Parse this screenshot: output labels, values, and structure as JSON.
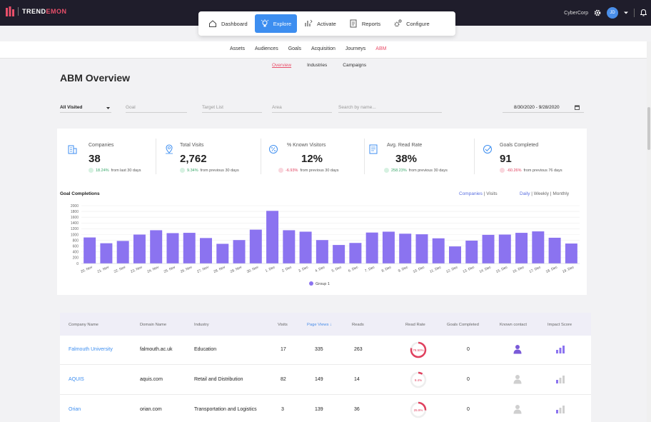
{
  "header": {
    "brand_prefix": "TREND",
    "brand_suffix": "EMON",
    "org": "CyberCorp",
    "avatar_initials": "JD"
  },
  "mainnav": [
    {
      "label": "Dashboard",
      "icon": "home-icon",
      "active": false
    },
    {
      "label": "Explore",
      "icon": "bulb-icon",
      "active": true
    },
    {
      "label": "Activate",
      "icon": "activate-icon",
      "active": false
    },
    {
      "label": "Reports",
      "icon": "reports-icon",
      "active": false
    },
    {
      "label": "Configure",
      "icon": "gear-icon",
      "active": false
    }
  ],
  "subnav": [
    "Assets",
    "Audiences",
    "Goals",
    "Acquisition",
    "Journeys",
    "ABM"
  ],
  "subnav_selected": "ABM",
  "abm_tabs": [
    "Overview",
    "Industries",
    "Campaigns"
  ],
  "abm_tab_selected": "Overview",
  "page": {
    "title": "ABM Overview"
  },
  "filters": {
    "visited": "All Visited",
    "goal_placeholder": "Goal",
    "target_list_placeholder": "Target List",
    "area_placeholder": "Area",
    "search_placeholder": "Search by name...",
    "date_range": "8/30/2020 - 9/28/2020"
  },
  "stats": [
    {
      "label": "Companies",
      "value": "38",
      "change": "18.24%",
      "suffix": "from last 30 days",
      "direction": "up"
    },
    {
      "label": "Total Visits",
      "value": "2,762",
      "change": "9.34%",
      "suffix": "from previous 30 days",
      "direction": "up"
    },
    {
      "label": "% Known Visitors",
      "value": "12%",
      "change": "-6.93%",
      "suffix": "from previous 30 days",
      "direction": "down"
    },
    {
      "label": "Avg. Read Rate",
      "value": "38%",
      "change": "258.23%",
      "suffix": "from previous 30 days",
      "direction": "up"
    },
    {
      "label": "Goals Completed",
      "value": "91",
      "change": "-60.26%",
      "suffix": "from previous 76 days",
      "direction": "down"
    }
  ],
  "chart_toggles": {
    "companies": "Companies",
    "visits": "Visits",
    "daily": "Daily",
    "weekly": "Weekly",
    "monthly": "Monthly",
    "sep": "|"
  },
  "chart_data": {
    "type": "bar",
    "title": "Goal Completions",
    "categories": [
      "20. Nov",
      "21. Nov",
      "22. Nov",
      "23. Nov",
      "24. Nov",
      "25. Nov",
      "26. Nov",
      "27. Nov",
      "28. Nov",
      "29. Nov",
      "30. Nov",
      "1. Dec",
      "2. Dec",
      "3. Dec",
      "4. Dec",
      "5. Dec",
      "6. Dec",
      "7. Dec",
      "8. Dec",
      "9. Dec",
      "10. Dec",
      "11. Dec",
      "12. Dec",
      "13. Dec",
      "14. Dec",
      "15. Dec",
      "16. Dec",
      "17. Dec",
      "18. Dec",
      "19. Dec"
    ],
    "series": [
      {
        "name": "Group 1",
        "color": "#8b73f0",
        "values": [
          900,
          700,
          780,
          1000,
          1150,
          1050,
          1060,
          880,
          680,
          810,
          1170,
          1820,
          1150,
          1100,
          810,
          640,
          710,
          1070,
          1100,
          1030,
          1010,
          870,
          590,
          790,
          990,
          1000,
          1060,
          1110,
          890,
          690
        ]
      }
    ],
    "ylim": [
      0,
      2000
    ],
    "yticks": [
      0,
      200,
      400,
      600,
      800,
      1000,
      1200,
      1400,
      1600,
      1800,
      2000
    ],
    "legend": "bottom-center",
    "xlabel": "",
    "ylabel": ""
  },
  "table": {
    "headers": [
      "Company Name",
      "Domain Name",
      "Industry",
      "Visits",
      "Page Views ↓",
      "Reads",
      "Read Rate",
      "Goals Completed",
      "Known contact",
      "Impact Score"
    ],
    "rows": [
      {
        "company": "Falmouth University",
        "domain": "falmouth.ac.uk",
        "industry": "Education",
        "visits": "17",
        "views": "335",
        "reads": "263",
        "rate": "78.50%",
        "rate_value": 78.5,
        "goals": "0",
        "known": true
      },
      {
        "company": "AQUIS",
        "domain": "aquis.com",
        "industry": "Retail and Distribution",
        "visits": "82",
        "views": "149",
        "reads": "14",
        "rate": "9.4%",
        "rate_value": 9.4,
        "goals": "0",
        "known": false
      },
      {
        "company": "Orian",
        "domain": "orian.com",
        "industry": "Transportation and Logistics",
        "visits": "3",
        "views": "139",
        "reads": "36",
        "rate": "25.9%",
        "rate_value": 25.9,
        "goals": "0",
        "known": false
      }
    ]
  },
  "colors": {
    "accent": "#3d8ef0",
    "brand_pink": "#e94f6a",
    "bar": "#8b73f0"
  }
}
